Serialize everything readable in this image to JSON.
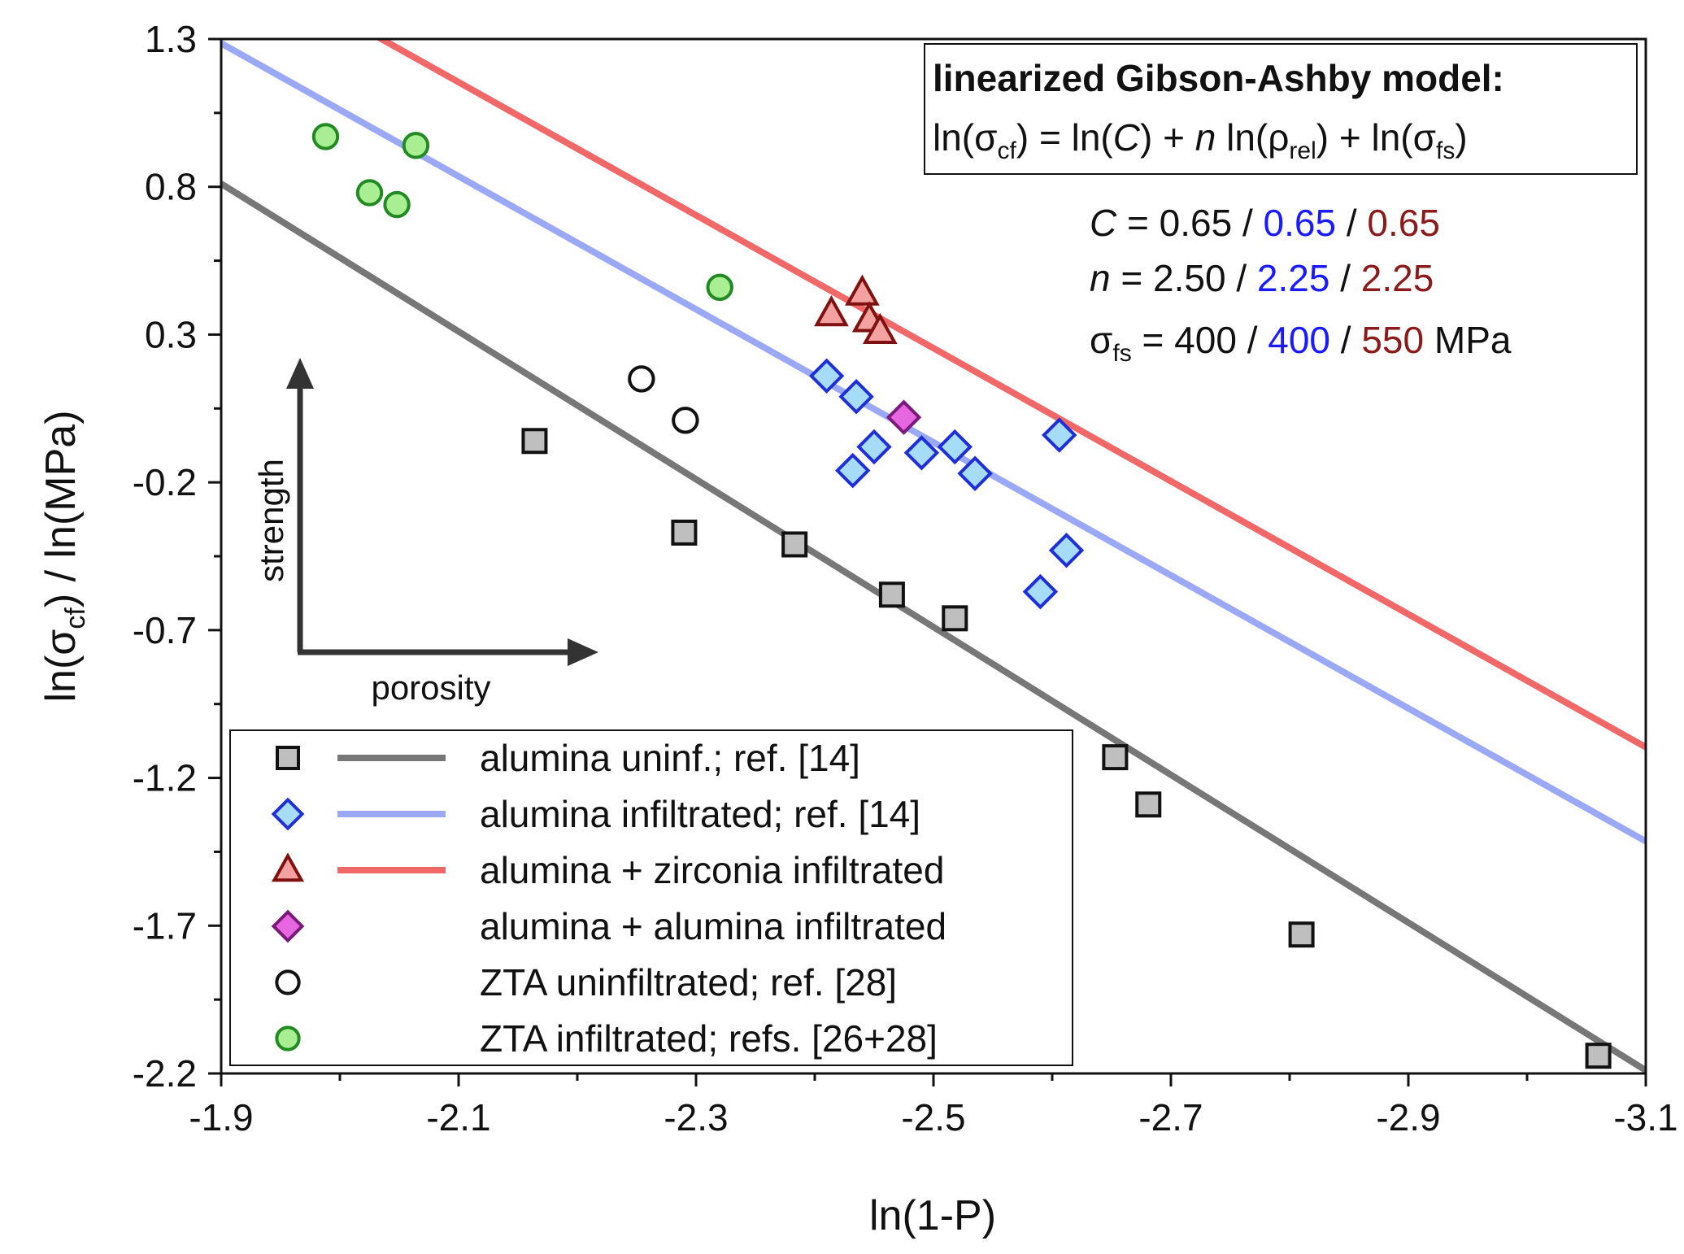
{
  "chart_data": {
    "type": "scatter",
    "xlabel": "ln(1-P)",
    "ylabel": {
      "pre": "ln(σ",
      "sub": "cf",
      "post": ") / ln(MPa)"
    },
    "xlim": [
      -1.9,
      -3.1
    ],
    "ylim": [
      -2.2,
      1.3
    ],
    "x_ticks": [
      -1.9,
      -2.1,
      -2.3,
      -2.5,
      -2.7,
      -2.9,
      -3.1
    ],
    "x_tick_labels": [
      "-1.9",
      "-2.1",
      "-2.3",
      "-2.5",
      "-2.7",
      "-2.9",
      "-3.1"
    ],
    "y_ticks": [
      1.3,
      0.8,
      0.3,
      -0.2,
      -0.7,
      -1.2,
      -1.7,
      -2.2
    ],
    "y_tick_labels": [
      "1.3",
      "0.8",
      "0.3",
      "-0.2",
      "-0.7",
      "-1.2",
      "-1.7",
      "-2.2"
    ],
    "grid": false,
    "legend_position": "bottom-left",
    "lines": [
      {
        "ref": "uninf",
        "color": "#777777",
        "n": 2.5,
        "intercept": 5.5605
      },
      {
        "ref": "inf",
        "color": "#9aa8f5",
        "n": 2.25,
        "intercept": 5.5605
      },
      {
        "ref": "zirc",
        "color": "#f06868",
        "n": 2.25,
        "intercept": 5.879
      }
    ],
    "series": [
      {
        "name": "alumina uninf.; ref. [14]",
        "marker": "square",
        "fill": "#bfbfbf",
        "stroke": "#111111",
        "line_color": "#777777",
        "points": [
          [
            -2.164,
            -0.06
          ],
          [
            -2.29,
            -0.37
          ],
          [
            -2.383,
            -0.41
          ],
          [
            -2.465,
            -0.58
          ],
          [
            -2.518,
            -0.66
          ],
          [
            -2.653,
            -1.13
          ],
          [
            -2.681,
            -1.29
          ],
          [
            -2.81,
            -1.73
          ],
          [
            -3.06,
            -2.14
          ]
        ]
      },
      {
        "name": "alumina infiltrated; ref. [14]",
        "marker": "diamond",
        "fill": "#a6dcf8",
        "stroke": "#1f2fd6",
        "line_color": "#9aa8f5",
        "points": [
          [
            -2.41,
            0.16
          ],
          [
            -2.435,
            0.09
          ],
          [
            -2.432,
            -0.16
          ],
          [
            -2.45,
            -0.08
          ],
          [
            -2.49,
            -0.1
          ],
          [
            -2.518,
            -0.08
          ],
          [
            -2.535,
            -0.17
          ],
          [
            -2.59,
            -0.57
          ],
          [
            -2.606,
            -0.04
          ],
          [
            -2.612,
            -0.43
          ]
        ]
      },
      {
        "name": "alumina + zirconia infiltrated",
        "marker": "triangle",
        "fill": "#f3a1a1",
        "stroke": "#7f1111",
        "line_color": "#f06868",
        "points": [
          [
            -2.414,
            0.37
          ],
          [
            -2.44,
            0.44
          ],
          [
            -2.446,
            0.35
          ],
          [
            -2.455,
            0.31
          ]
        ]
      },
      {
        "name": "alumina + alumina infiltrated",
        "marker": "diamond",
        "fill": "#e667e0",
        "stroke": "#7a1a7a",
        "points": [
          [
            -2.475,
            0.02
          ]
        ]
      },
      {
        "name": "ZTA uninfiltrated; ref. [28]",
        "marker": "circle",
        "fill": "#ffffff",
        "stroke": "#111111",
        "points": [
          [
            -2.254,
            0.15
          ],
          [
            -2.291,
            0.01
          ]
        ]
      },
      {
        "name": "ZTA infiltrated; refs. [26+28]",
        "marker": "circle",
        "fill": "#a9ee93",
        "stroke": "#228a22",
        "points": [
          [
            -1.988,
            0.97
          ],
          [
            -2.025,
            0.78
          ],
          [
            -2.048,
            0.74
          ],
          [
            -2.064,
            0.94
          ],
          [
            -2.32,
            0.46
          ]
        ]
      }
    ],
    "model_box": {
      "title": "linearized Gibson-Ashby model:",
      "eq_1": "ln(σ",
      "eq_1_sub": "cf",
      "eq_2": ") = ln(",
      "eq_C": "C",
      "eq_3": ") + ",
      "eq_n": "n",
      "eq_4": " ln(ρ",
      "eq_4_sub": "rel",
      "eq_5": ") + ln(σ",
      "eq_5_sub": "fs",
      "eq_6": ")"
    },
    "params": {
      "C_label": "C",
      "C_eq": " = 0.65 / ",
      "C_blue": "0.65",
      "C_sep": " / ",
      "C_red": "0.65",
      "n_label": "n",
      "n_eq": "  = 2.50 / ",
      "n_blue": "2.25",
      "n_sep": " / ",
      "n_red": "2.25",
      "s_label": "σ",
      "s_sub": "fs",
      "s_eq": " = 400  / ",
      "s_blue": "400",
      "s_sep": "  / ",
      "s_red": "550",
      "s_unit": " MPa"
    },
    "arrows": {
      "y_label": "strength",
      "x_label": "porosity"
    },
    "colors": {
      "blue_text": "#1a1aff",
      "red_text": "#8b1a1a"
    }
  }
}
